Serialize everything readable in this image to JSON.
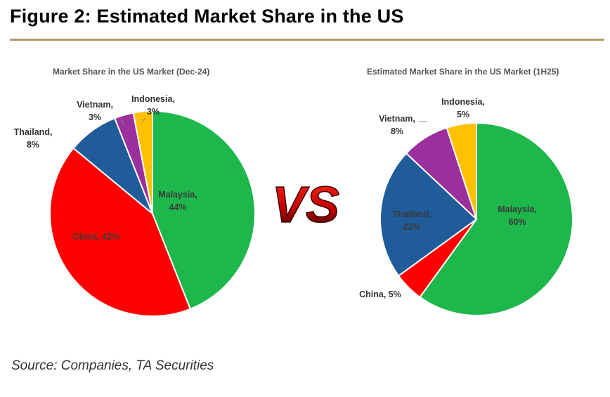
{
  "figure": {
    "title": "Figure 2: Estimated Market Share in the US",
    "vs_label": "VS",
    "source": "Source: Companies, TA Securities"
  },
  "colors": {
    "Malaysia": "#1db74b",
    "China": "#ff0000",
    "Thailand": "#1f5c99",
    "Vietnam": "#9b2f9b",
    "Indonesia": "#ffc000",
    "rule": "#b39a6b"
  },
  "chart_data": [
    {
      "type": "pie",
      "title": "Market Share in the US Market (Dec-24)",
      "slices": [
        {
          "name": "Malaysia",
          "value": 44,
          "label_line1": "Malaysia,",
          "label_line2": "44%"
        },
        {
          "name": "China",
          "value": 42,
          "label_line1": "China, 42%",
          "label_line2": ""
        },
        {
          "name": "Thailand",
          "value": 8,
          "label_line1": "Thailand,",
          "label_line2": "8%"
        },
        {
          "name": "Vietnam",
          "value": 3,
          "label_line1": "Vietnam,",
          "label_line2": "3%"
        },
        {
          "name": "Indonesia",
          "value": 3,
          "label_line1": "Indonesia,",
          "label_line2": "3%"
        }
      ]
    },
    {
      "type": "pie",
      "title": "Estimated Market Share in the US Market (1H25)",
      "slices": [
        {
          "name": "Malaysia",
          "value": 60,
          "label_line1": "Malaysia,",
          "label_line2": "60%"
        },
        {
          "name": "China",
          "value": 5,
          "label_line1": "China, 5%",
          "label_line2": ""
        },
        {
          "name": "Thailand",
          "value": 22,
          "label_line1": "Thailand,",
          "label_line2": "22%"
        },
        {
          "name": "Vietnam",
          "value": 8,
          "label_line1": "Vietnam,",
          "label_line2": "8%"
        },
        {
          "name": "Indonesia",
          "value": 5,
          "label_line1": "Indonesia,",
          "label_line2": "5%"
        }
      ]
    }
  ]
}
